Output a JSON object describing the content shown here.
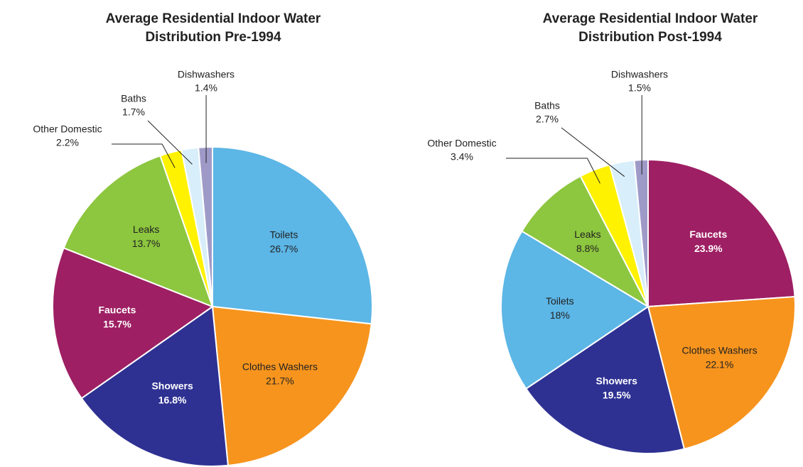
{
  "chart_data": [
    {
      "type": "pie",
      "title": "Average Residential Indoor Water Distribution Pre-1994",
      "categories": [
        "Toilets",
        "Clothes Washers",
        "Showers",
        "Faucets",
        "Leaks",
        "Other Domestic",
        "Baths",
        "Dishwashers"
      ],
      "values": [
        26.7,
        21.7,
        16.8,
        15.7,
        13.7,
        2.2,
        1.7,
        1.4
      ],
      "value_labels": [
        "26.7%",
        "21.7%",
        "16.8%",
        "15.7%",
        "13.7%",
        "2.2%",
        "1.7%",
        "1.4%"
      ],
      "colors": [
        "#5cb6e6",
        "#f7941d",
        "#2e3192",
        "#9e1f63",
        "#8dc63f",
        "#fff200",
        "#d8eefa",
        "#9e9ac8"
      ]
    },
    {
      "type": "pie",
      "title": "Average Residential Indoor Water Distribution Post-1994",
      "categories": [
        "Faucets",
        "Clothes Washers",
        "Showers",
        "Toilets",
        "Leaks",
        "Other Domestic",
        "Baths",
        "Dishwashers"
      ],
      "values": [
        23.9,
        22.1,
        19.5,
        18,
        8.8,
        3.4,
        2.7,
        1.5
      ],
      "value_labels": [
        "23.9%",
        "22.1%",
        "19.5%",
        "18%",
        "8.8%",
        "3.4%",
        "2.7%",
        "1.5%"
      ],
      "colors": [
        "#9e1f63",
        "#f7941d",
        "#2e3192",
        "#5cb6e6",
        "#8dc63f",
        "#fff200",
        "#d8eefa",
        "#9e9ac8"
      ]
    }
  ]
}
